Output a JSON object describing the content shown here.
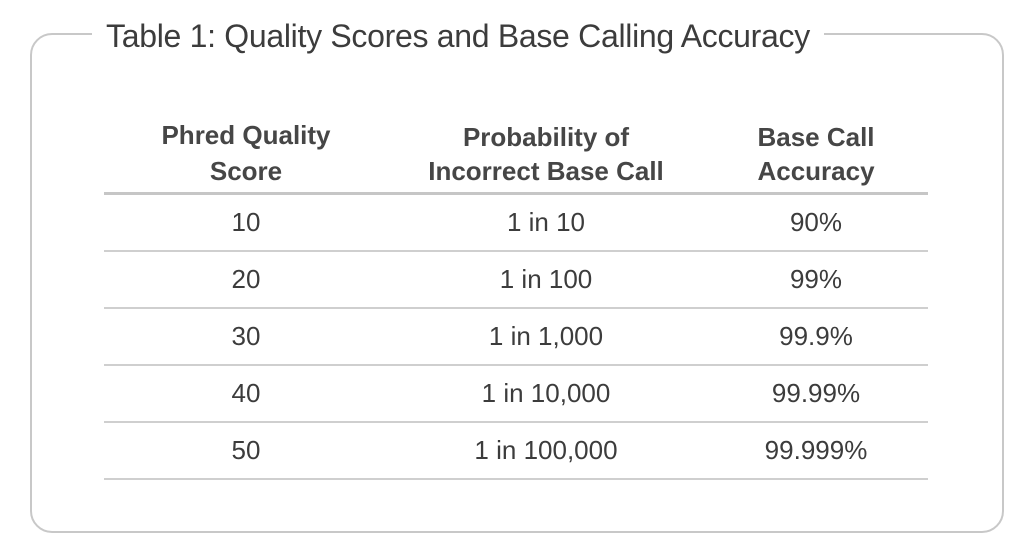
{
  "title": "Table 1: Quality Scores and Base Calling Accuracy",
  "headers": [
    {
      "line1": "Phred Quality",
      "line2": "Score"
    },
    {
      "line1": "Probability of",
      "line2": "Incorrect Base Call"
    },
    {
      "line1": "Base Call",
      "line2": "Accuracy"
    }
  ],
  "rows": [
    {
      "score": "10",
      "probability": "1 in 10",
      "accuracy": "90%"
    },
    {
      "score": "20",
      "probability": "1 in 100",
      "accuracy": "99%"
    },
    {
      "score": "30",
      "probability": "1 in 1,000",
      "accuracy": "99.9%"
    },
    {
      "score": "40",
      "probability": "1 in 10,000",
      "accuracy": "99.99%"
    },
    {
      "score": "50",
      "probability": "1 in 100,000",
      "accuracy": "99.999%"
    }
  ]
}
